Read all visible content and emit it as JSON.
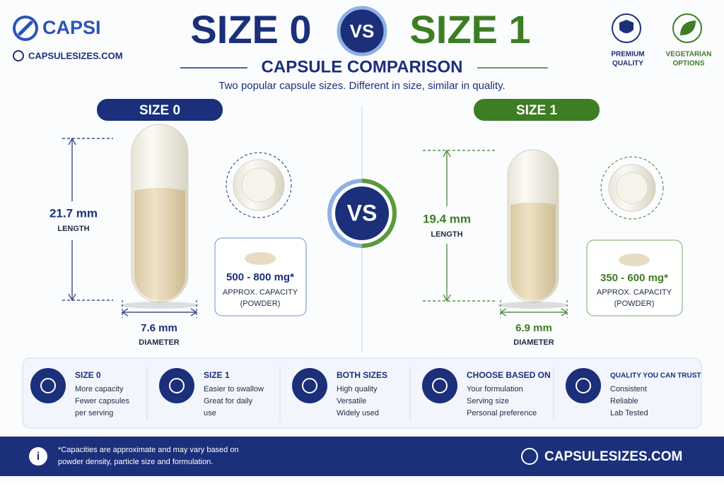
{
  "header": {
    "brand": "CAPSI",
    "website": "CAPSULESIZES.COM",
    "title_left": "SIZE 0",
    "vs": "VS",
    "title_right": "SIZE 1",
    "subtitle": "CAPSULE COMPARISON",
    "tagline": "Two popular capsule sizes. Different in size, similar in quality.",
    "badges": [
      {
        "lines": [
          "PREMIUM",
          "QUALITY"
        ]
      },
      {
        "lines": [
          "VEGETARIAN",
          "OPTIONS"
        ]
      }
    ]
  },
  "panels": [
    {
      "label": "SIZE 0",
      "length": "21.7 mm",
      "length_label": "LENGTH",
      "diameter": "7.6 mm",
      "diameter_label": "DIAMETER",
      "capacity": "500 - 800 mg*",
      "capacity_label": [
        "APPROX. CAPACITY",
        "(POWDER)"
      ]
    },
    {
      "label": "SIZE 1",
      "length": "19.4 mm",
      "length_label": "LENGTH",
      "diameter": "6.9 mm",
      "diameter_label": "DIAMETER",
      "capacity": "350 - 600 mg*",
      "capacity_label": [
        "APPROX. CAPACITY",
        "(POWDER)"
      ]
    }
  ],
  "center_vs": "VS",
  "features": [
    {
      "title": "SIZE 0",
      "lines": [
        "More capacity",
        "Fewer capsules",
        "per serving"
      ]
    },
    {
      "title": "SIZE 1",
      "lines": [
        "Easier to swallow",
        "Great for daily",
        "use"
      ]
    },
    {
      "title": "BOTH SIZES",
      "lines": [
        "High quality",
        "Versatile",
        "Widely used"
      ]
    },
    {
      "title": "CHOOSE BASED ON",
      "lines": [
        "Your formulation",
        "Serving size",
        "Personal preference"
      ]
    },
    {
      "title": "QUALITY YOU CAN TRUST",
      "lines": [
        "Consistent",
        "Reliable",
        "Lab Tested"
      ]
    }
  ],
  "footer": {
    "note": [
      "*Capacities are approximate and may vary based on",
      "powder density, particle size and formulation."
    ],
    "website": "CAPSULESIZES.COM"
  }
}
